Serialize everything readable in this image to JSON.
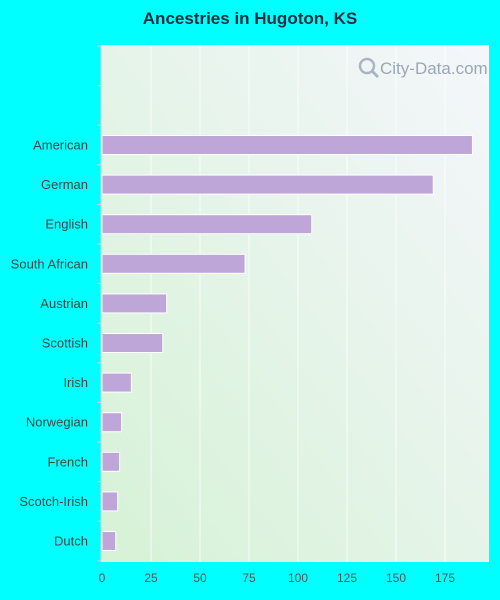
{
  "chart_data": {
    "type": "bar",
    "orientation": "horizontal",
    "title": "Ancestries in Hugoton, KS",
    "categories": [
      "American",
      "German",
      "English",
      "South African",
      "Austrian",
      "Scottish",
      "Irish",
      "Norwegian",
      "French",
      "Scotch-Irish",
      "Dutch"
    ],
    "values": [
      189,
      169,
      107,
      73,
      33,
      31,
      15,
      10,
      9,
      8,
      7
    ],
    "xlim": [
      0,
      195
    ],
    "xticks": [
      0,
      25,
      50,
      75,
      100,
      125,
      150,
      175
    ],
    "xlabel": "",
    "ylabel": "",
    "grid": "vertical",
    "colors": {
      "bar": "#bfa6d9",
      "background": "#00ffff",
      "plot_gradient_top": "#f4f6fb",
      "plot_gradient_bottom": "#d6f2d6"
    }
  },
  "watermark": {
    "text": "City-Data.com",
    "icon": "search-magnifier-icon"
  }
}
